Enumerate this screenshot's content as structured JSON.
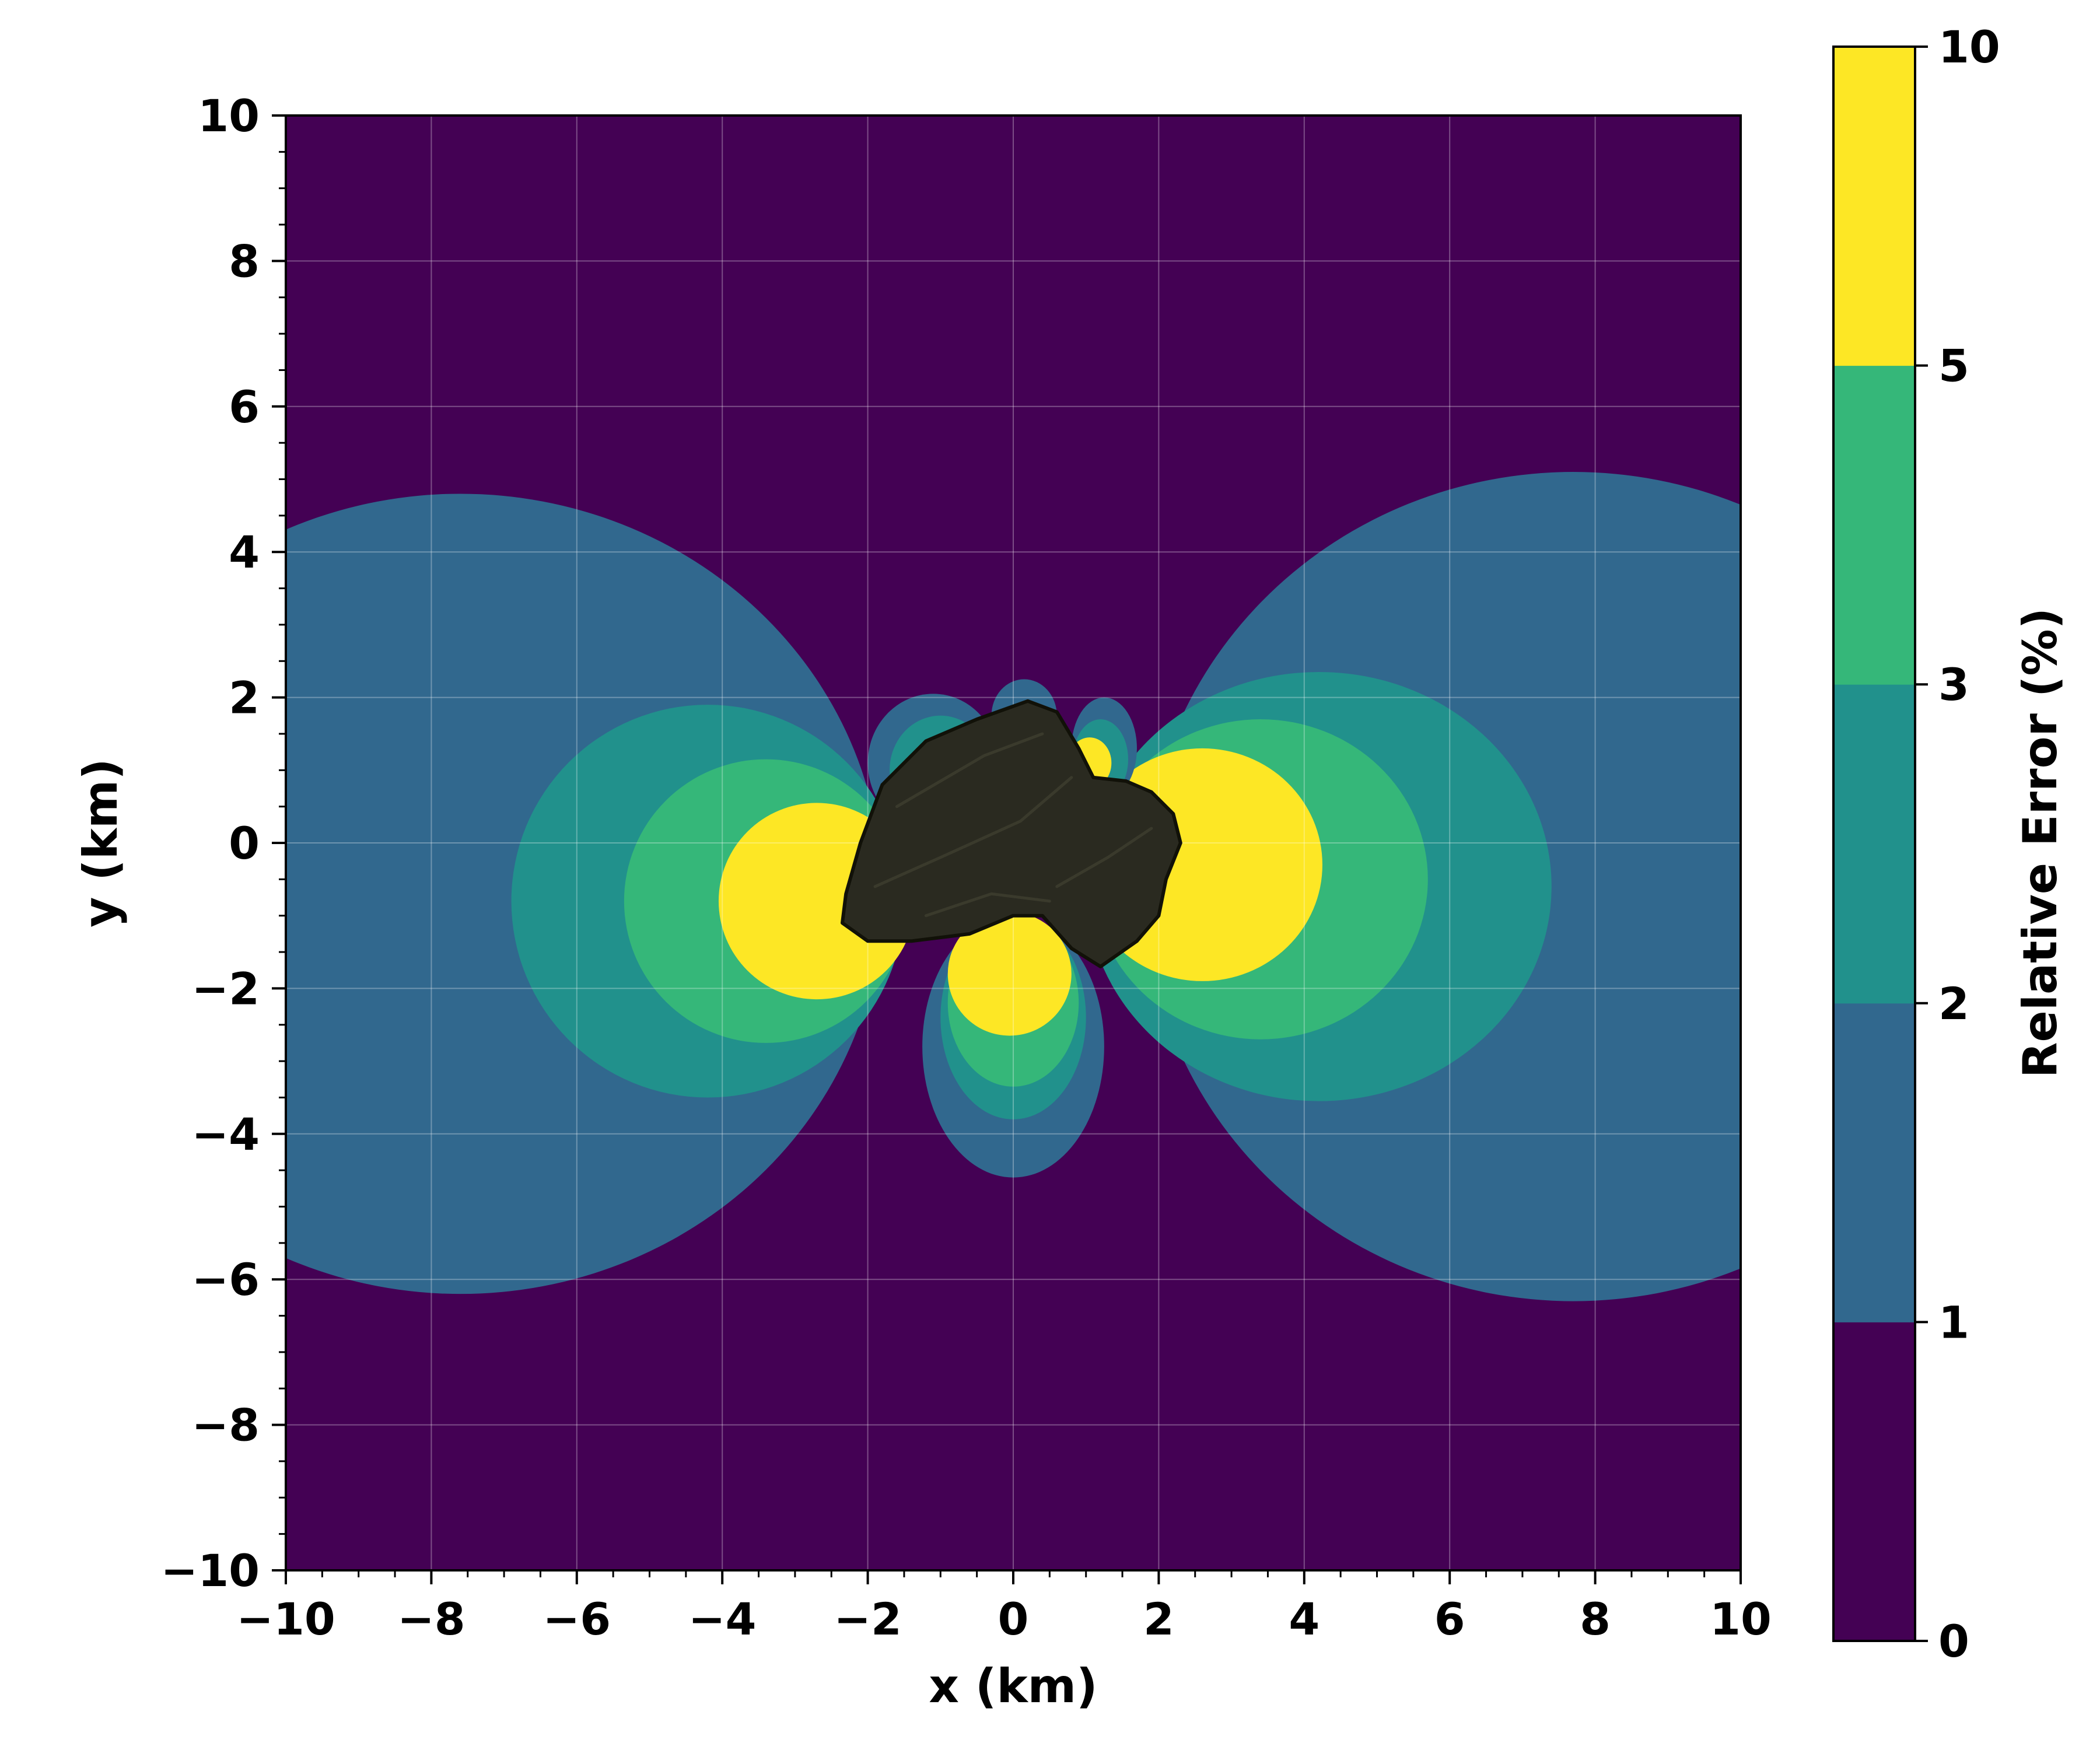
{
  "chart_data": {
    "type": "contourf",
    "xlabel": "x (km)",
    "ylabel": "y (km)",
    "xlim": [
      -10,
      10
    ],
    "ylim": [
      -10,
      10
    ],
    "x_ticks": [
      -10,
      -8,
      -6,
      -4,
      -2,
      0,
      2,
      4,
      6,
      8,
      10
    ],
    "y_ticks": [
      -10,
      -8,
      -6,
      -4,
      -2,
      0,
      2,
      4,
      6,
      8,
      10
    ],
    "x_tick_labels": [
      "−10",
      "−8",
      "−6",
      "−4",
      "−2",
      "0",
      "2",
      "4",
      "6",
      "8",
      "10"
    ],
    "y_tick_labels": [
      "−10",
      "−8",
      "−6",
      "−4",
      "−2",
      "0",
      "2",
      "4",
      "6",
      "8",
      "10"
    ],
    "grid": true,
    "background_level_color": "#440154",
    "levels": [
      0,
      1,
      2,
      3,
      5,
      10
    ],
    "level_colors": [
      "#440154",
      "#31688e",
      "#21918c",
      "#35b779",
      "#fde725"
    ],
    "colorbar": {
      "label": "Relative Error (%)",
      "tick_values": [
        0,
        1,
        2,
        3,
        5,
        10
      ],
      "tick_labels": [
        "0",
        "1",
        "2",
        "3",
        "5",
        "10"
      ]
    },
    "regions": [
      {
        "name": "left-lobe-1",
        "band": "1-2",
        "center": [
          -7.6,
          -0.7
        ],
        "rx": 5.8,
        "ry": 5.5
      },
      {
        "name": "right-lobe-1",
        "band": "1-2",
        "center": [
          7.7,
          -0.6
        ],
        "rx": 5.9,
        "ry": 5.7
      },
      {
        "name": "left-lobe-2",
        "band": "2-3",
        "center": [
          -4.2,
          -0.8
        ],
        "rx": 2.7,
        "ry": 2.7
      },
      {
        "name": "right-lobe-2",
        "band": "2-3",
        "center": [
          4.2,
          -0.6
        ],
        "rx": 3.2,
        "ry": 2.95
      },
      {
        "name": "left-lobe-3",
        "band": "3-5",
        "center": [
          -3.4,
          -0.8
        ],
        "rx": 1.95,
        "ry": 1.95
      },
      {
        "name": "right-lobe-3",
        "band": "3-5",
        "center": [
          3.4,
          -0.5
        ],
        "rx": 2.3,
        "ry": 2.2
      },
      {
        "name": "left-lobe-5",
        "band": "5-10",
        "center": [
          -2.7,
          -0.8
        ],
        "rx": 1.35,
        "ry": 1.35
      },
      {
        "name": "right-lobe-5",
        "band": "5-10",
        "center": [
          2.6,
          -0.3
        ],
        "rx": 1.65,
        "ry": 1.6
      },
      {
        "name": "bottom-lobe-1",
        "band": "1-2",
        "center": [
          0,
          -2.8
        ],
        "rx": 1.25,
        "ry": 1.8
      },
      {
        "name": "bottom-lobe-2",
        "band": "2-3",
        "center": [
          0,
          -2.4
        ],
        "rx": 1.0,
        "ry": 1.4
      },
      {
        "name": "bottom-lobe-3",
        "band": "3-5",
        "center": [
          0,
          -2.2
        ],
        "rx": 0.9,
        "ry": 1.15
      },
      {
        "name": "bottom-lobe-5",
        "band": "5-10",
        "center": [
          -0.05,
          -1.8
        ],
        "rx": 0.85,
        "ry": 0.85
      },
      {
        "name": "top-left-lobe-1",
        "band": "1-2",
        "center": [
          -1.1,
          1.1
        ],
        "rx": 0.9,
        "ry": 0.95
      },
      {
        "name": "top-left-lobe-2",
        "band": "2-3",
        "center": [
          -1.0,
          1.0
        ],
        "rx": 0.7,
        "ry": 0.75
      },
      {
        "name": "top-left-lobe-3",
        "band": "3-5",
        "center": [
          -0.9,
          0.95
        ],
        "rx": 0.5,
        "ry": 0.55
      },
      {
        "name": "top-mid-lobe-1",
        "band": "1-2",
        "center": [
          0.15,
          1.75
        ],
        "rx": 0.45,
        "ry": 0.5
      },
      {
        "name": "top-right-lobe-1",
        "band": "1-2",
        "center": [
          1.25,
          1.3
        ],
        "rx": 0.45,
        "ry": 0.7
      },
      {
        "name": "top-right-lobe-2",
        "band": "2-3",
        "center": [
          1.2,
          1.15
        ],
        "rx": 0.38,
        "ry": 0.55
      },
      {
        "name": "top-right-lobe-5",
        "band": "5-10",
        "center": [
          1.05,
          1.1
        ],
        "rx": 0.3,
        "ry": 0.35
      }
    ],
    "obstacle": {
      "description": "comet nucleus silhouette",
      "color": "#2a2a20",
      "outline": [
        [
          -2.3,
          -0.7
        ],
        [
          -2.1,
          0.0
        ],
        [
          -1.8,
          0.8
        ],
        [
          -1.2,
          1.4
        ],
        [
          -0.5,
          1.7
        ],
        [
          0.2,
          1.95
        ],
        [
          0.6,
          1.8
        ],
        [
          0.9,
          1.3
        ],
        [
          1.1,
          0.9
        ],
        [
          1.55,
          0.85
        ],
        [
          1.9,
          0.7
        ],
        [
          2.2,
          0.4
        ],
        [
          2.3,
          0.0
        ],
        [
          2.1,
          -0.5
        ],
        [
          2.0,
          -1.0
        ],
        [
          1.7,
          -1.35
        ],
        [
          1.2,
          -1.7
        ],
        [
          0.8,
          -1.45
        ],
        [
          0.4,
          -1.0
        ],
        [
          0.0,
          -1.0
        ],
        [
          -0.6,
          -1.25
        ],
        [
          -1.4,
          -1.35
        ],
        [
          -2.0,
          -1.35
        ],
        [
          -2.35,
          -1.1
        ]
      ]
    }
  }
}
